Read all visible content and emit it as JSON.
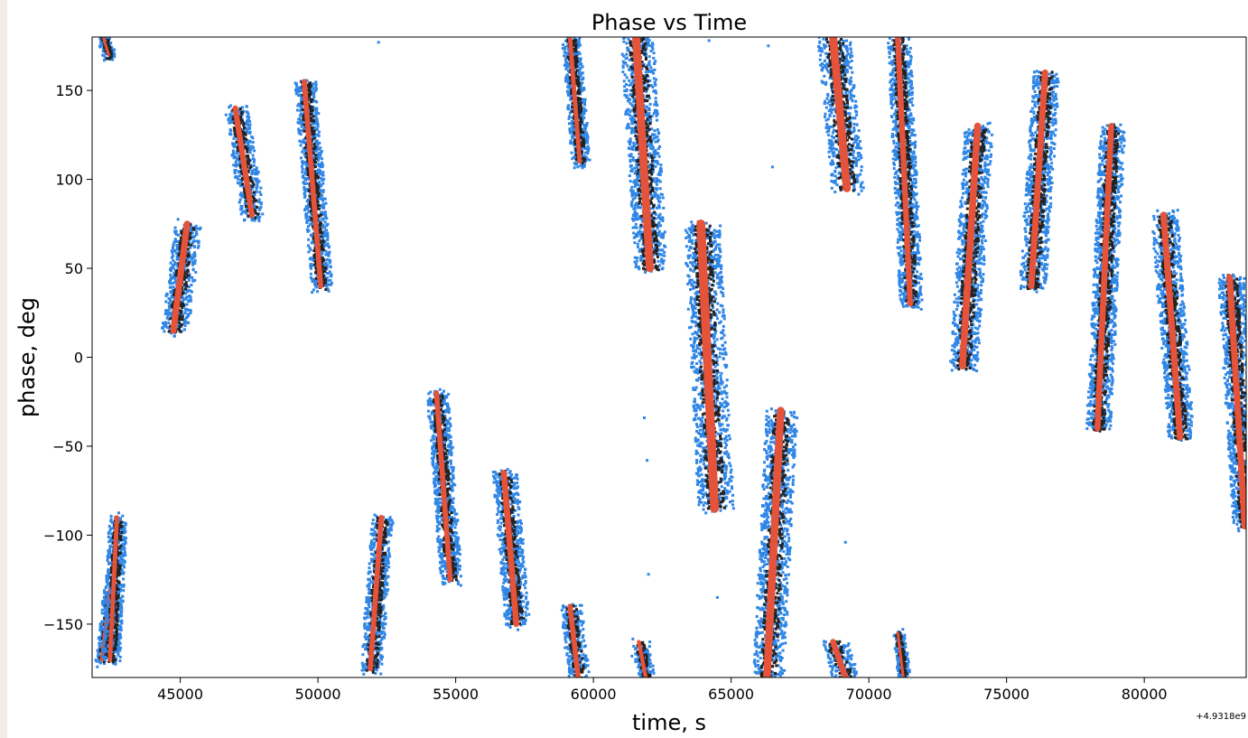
{
  "chart_data": {
    "type": "scatter",
    "title": "Phase vs Time",
    "xlabel": "time, s",
    "ylabel": "phase, deg",
    "x_offset_label": "+4.9318e9",
    "xlim": [
      41800,
      83700
    ],
    "ylim": [
      -180,
      180
    ],
    "xticks": [
      45000,
      50000,
      55000,
      60000,
      65000,
      70000,
      75000,
      80000
    ],
    "yticks": [
      150,
      100,
      50,
      0,
      -50,
      -100,
      -150
    ],
    "xtick_labels": [
      "45000",
      "50000",
      "55000",
      "60000",
      "65000",
      "70000",
      "75000",
      "80000"
    ],
    "ytick_labels": [
      "150",
      "100",
      "50",
      "0",
      "−50",
      "−100",
      "−150"
    ],
    "grid": false,
    "legend": false,
    "colors": {
      "outer": "#2f86e6",
      "mid": "#222222",
      "core": "#e5533a"
    },
    "series": [
      {
        "segments": [
          {
            "x": [
              42150,
              42450
            ],
            "y": [
              -170,
              -130
            ],
            "w": 18
          },
          {
            "x": [
              42450,
              42700
            ],
            "y": [
              -170,
              -90
            ],
            "w": 22
          },
          {
            "x": [
              44750,
              45250
            ],
            "y": [
              15,
              75
            ],
            "w": 32
          },
          {
            "x": [
              47000,
              47600
            ],
            "y": [
              140,
              80
            ],
            "w": 28
          },
          {
            "x": [
              49500,
              50100
            ],
            "y": [
              155,
              40
            ],
            "w": 26
          },
          {
            "x": [
              51900,
              52300
            ],
            "y": [
              -175,
              -90
            ],
            "w": 26
          },
          {
            "x": [
              54300,
              54800
            ],
            "y": [
              -20,
              -125
            ],
            "w": 26
          },
          {
            "x": [
              56750,
              57200
            ],
            "y": [
              -65,
              -150
            ],
            "w": 30
          },
          {
            "x": [
              59150,
              59500
            ],
            "y": [
              180,
              110
            ],
            "w": 22
          },
          {
            "x": [
              61550,
              62050
            ],
            "y": [
              180,
              50
            ],
            "w": 40
          },
          {
            "x": [
              63900,
              64400
            ],
            "y": [
              75,
              -85
            ],
            "w": 44
          },
          {
            "x": [
              66300,
              66800
            ],
            "y": [
              -180,
              -30
            ],
            "w": 38
          },
          {
            "x": [
              68700,
              69200
            ],
            "y": [
              180,
              95
            ],
            "w": 40
          },
          {
            "x": [
              71050,
              71500
            ],
            "y": [
              180,
              30
            ],
            "w": 28
          },
          {
            "x": [
              73400,
              73950
            ],
            "y": [
              -5,
              130
            ],
            "w": 34
          },
          {
            "x": [
              75900,
              76400
            ],
            "y": [
              40,
              160
            ],
            "w": 32
          },
          {
            "x": [
              78300,
              78800
            ],
            "y": [
              -40,
              130
            ],
            "w": 30
          },
          {
            "x": [
              80700,
              81300
            ],
            "y": [
              80,
              -45
            ],
            "w": 32
          },
          {
            "x": [
              83100,
              83650
            ],
            "y": [
              45,
              -95
            ],
            "w": 32
          },
          {
            "x": [
              59150,
              59450
            ],
            "y": [
              -140,
              -180
            ],
            "w": 26
          },
          {
            "x": [
              61650,
              61900
            ],
            "y": [
              -160,
              -180
            ],
            "w": 20
          },
          {
            "x": [
              68700,
              69150
            ],
            "y": [
              -160,
              -180
            ],
            "w": 30
          },
          {
            "x": [
              71050,
              71250
            ],
            "y": [
              -155,
              -180
            ],
            "w": 14
          },
          {
            "x": [
              42200,
              42400
            ],
            "y": [
              180,
              170
            ],
            "w": 14
          }
        ]
      }
    ],
    "stray_points": [
      {
        "x": 52200,
        "y": 177
      },
      {
        "x": 62050,
        "y": 107
      },
      {
        "x": 61850,
        "y": -34
      },
      {
        "x": 61950,
        "y": -58
      },
      {
        "x": 62000,
        "y": -122
      },
      {
        "x": 64500,
        "y": -135
      },
      {
        "x": 64200,
        "y": 178
      },
      {
        "x": 66500,
        "y": 107
      },
      {
        "x": 66350,
        "y": 175
      },
      {
        "x": 69150,
        "y": -104
      },
      {
        "x": 62050,
        "y": -160
      },
      {
        "x": 61400,
        "y": -168
      }
    ]
  }
}
